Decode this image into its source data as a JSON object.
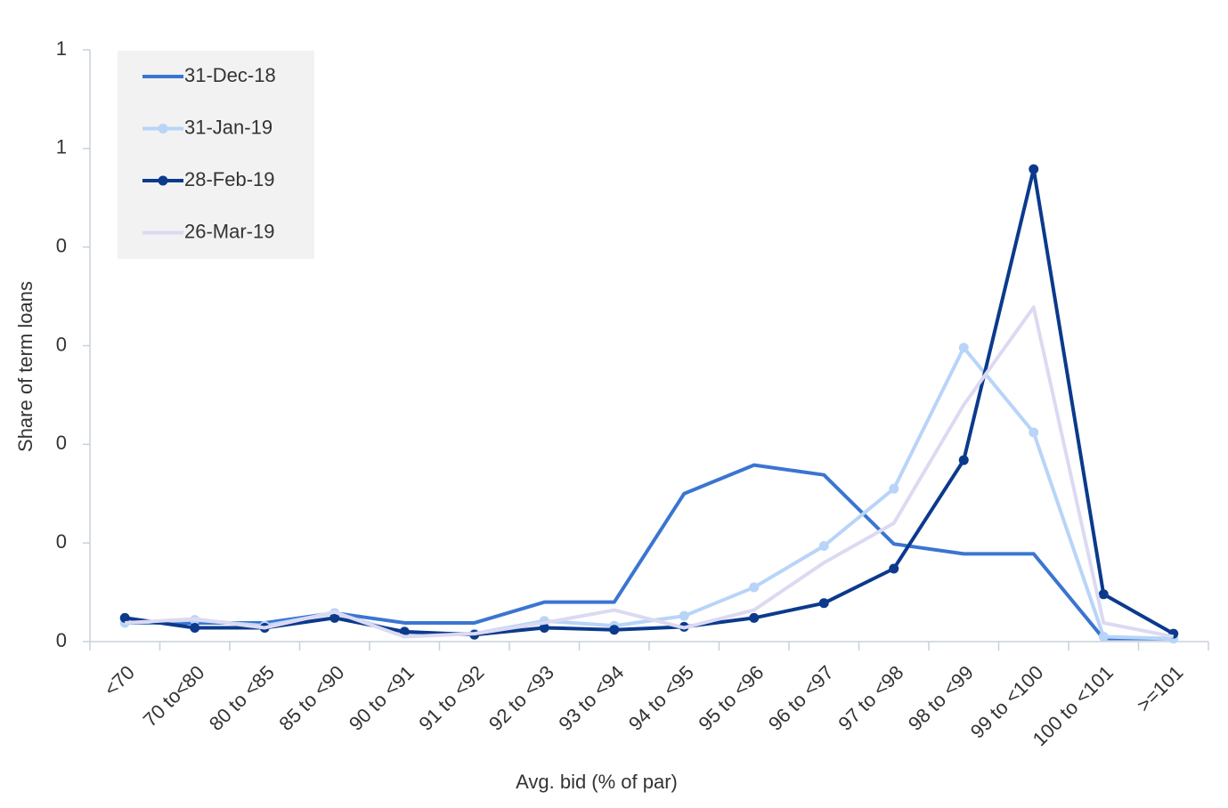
{
  "chart_data": {
    "type": "line",
    "x_label": "Avg. bid (% of par)",
    "y_label": "Share of term loans",
    "categories": [
      "<70",
      "70 to<80",
      "80 to <85",
      "85 to <90",
      "90 to <91",
      "91 to <92",
      "92 to <93",
      "93 to <94",
      "94 to <95",
      "95 to <96",
      "96 to <97",
      "97 to <98",
      "98 to <99",
      "99 to <100",
      "100 to <101",
      ">=101"
    ],
    "series": [
      {
        "name": "31-Dec-18",
        "color": "#3a75d1",
        "markers": false,
        "values": [
          0.019,
          0.019,
          0.019,
          0.029,
          0.019,
          0.019,
          0.04,
          0.04,
          0.15,
          0.179,
          0.169,
          0.099,
          0.089,
          0.089,
          0.003,
          0.003
        ]
      },
      {
        "name": "31-Jan-19",
        "color": "#b8d4f8",
        "markers": true,
        "values": [
          0.019,
          0.022,
          0.016,
          0.029,
          0.008,
          0.008,
          0.021,
          0.016,
          0.026,
          0.055,
          0.097,
          0.155,
          0.298,
          0.212,
          0.005,
          0.003
        ]
      },
      {
        "name": "28-Feb-19",
        "color": "#0b3a8c",
        "markers": true,
        "values": [
          0.024,
          0.014,
          0.014,
          0.024,
          0.01,
          0.007,
          0.014,
          0.012,
          0.015,
          0.024,
          0.039,
          0.074,
          0.184,
          0.479,
          0.048,
          0.008
        ]
      },
      {
        "name": "26-Mar-19",
        "color": "#dcdaf2",
        "markers": false,
        "values": [
          0.019,
          0.023,
          0.014,
          0.03,
          0.005,
          0.008,
          0.019,
          0.032,
          0.014,
          0.032,
          0.08,
          0.12,
          0.24,
          0.339,
          0.019,
          0.005
        ]
      }
    ],
    "ylim": [
      0,
      0.6
    ],
    "yticks": [
      0,
      {
        "value": 0.1,
        "label": "0"
      },
      {
        "value": 0.2,
        "label": "0"
      },
      {
        "value": 0.3,
        "label": "0"
      },
      {
        "value": 0.4,
        "label": "0"
      },
      {
        "value": 0.5,
        "label": "1"
      },
      {
        "value": 0.6,
        "label": "1"
      }
    ],
    "legend": "upper-left"
  }
}
